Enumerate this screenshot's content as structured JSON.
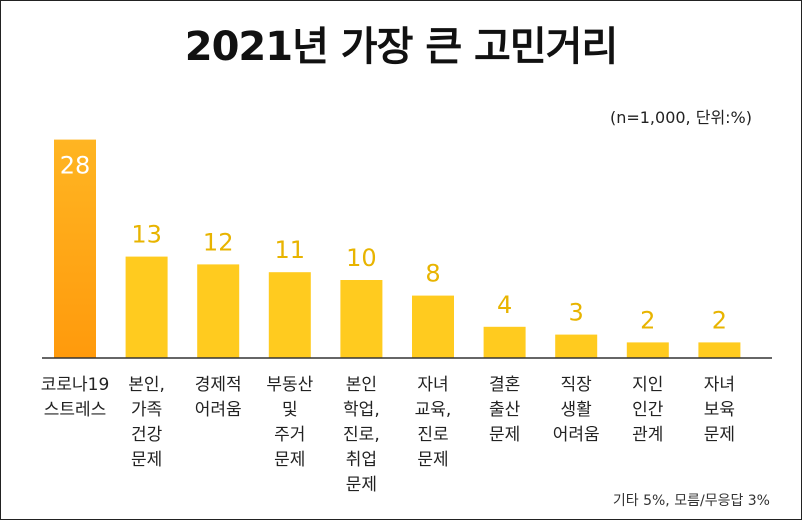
{
  "title": "2021년 가장 큰 고민거리",
  "unit_note": "(n=1,000, 단위:%)",
  "footnote": "기타 5%, 모름/무응답 3%",
  "colors": {
    "highlight_top": "#ffb522",
    "highlight_bottom": "#ff9a0c",
    "bar": "#ffcb1f",
    "label_highlight": "#ffffff",
    "label": "#e8b400",
    "axis": "#333333"
  },
  "chart_data": {
    "type": "bar",
    "title": "2021년 가장 큰 고민거리",
    "categories": [
      [
        "코로나19",
        "스트레스"
      ],
      [
        "본인,",
        "가족",
        "건강",
        "문제"
      ],
      [
        "경제적",
        "어려움"
      ],
      [
        "부동산",
        "및",
        "주거",
        "문제"
      ],
      [
        "본인",
        "학업,",
        "진로,",
        "취업",
        "문제"
      ],
      [
        "자녀",
        "교육,",
        "진로",
        "문제"
      ],
      [
        "결혼",
        "출산",
        "문제"
      ],
      [
        "직장",
        "생활",
        "어려움"
      ],
      [
        "지인",
        "인간",
        "관계"
      ],
      [
        "자녀",
        "보육",
        "문제"
      ]
    ],
    "values": [
      28,
      13,
      12,
      11,
      10,
      8,
      4,
      3,
      2,
      2
    ],
    "highlight_index": 0,
    "ylim": [
      0,
      30
    ],
    "grid": false
  }
}
